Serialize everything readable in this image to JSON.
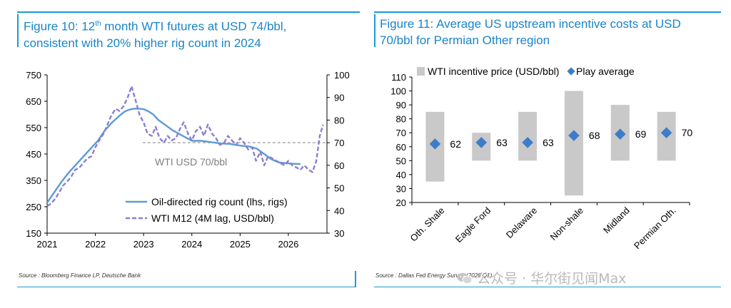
{
  "left": {
    "title_prefix": "Figure 10: 12",
    "title_sup": "th",
    "title_rest": " month WTI futures at USD 74/bbl,",
    "title_line2": "consistent with 20% higher rig count in 2024",
    "source": "Source : Bloomberg Finance LP, Deutsche Bank",
    "reference_label": "WTI USD 70/bbl",
    "legend_rig": "Oil-directed rig count (lhs, rigs)",
    "legend_wti": "WTI M12 (4M lag, USD/bbl)",
    "colors": {
      "rig": "#5b9bd5",
      "wti": "#8a7fd1",
      "ref": "#999999",
      "accent": "#1a9bd7"
    }
  },
  "right": {
    "title_line1": "Figure 11: Average US upstream incentive costs at USD",
    "title_line2": "70/bbl for Permian Other region",
    "source": "Source : Dallas Fed Energy Survey (2026 Q1)",
    "legend_range": "WTI incentive price (USD/bbl)",
    "legend_avg": "Play average",
    "colors": {
      "bar": "#c9c9c9",
      "marker": "#3d7cc9"
    }
  },
  "watermark": {
    "text": "公众号 · 华尔街见闻Max",
    "icon": "wechat-icon"
  },
  "chart_data": [
    {
      "type": "line",
      "title": "Figure 10: 12th month WTI futures at USD 74/bbl, consistent with 20% higher rig count in 2024",
      "x_ticks": [
        "2021",
        "2022",
        "2023",
        "2024",
        "2025",
        "2026"
      ],
      "x_range": [
        2021.0,
        2026.8
      ],
      "y_left_ticks": [
        "150",
        "250",
        "350",
        "450",
        "550",
        "650",
        "750"
      ],
      "y_left_range": [
        150,
        750
      ],
      "y_right_ticks": [
        "30",
        "40",
        "50",
        "60",
        "70",
        "80",
        "90",
        "100"
      ],
      "y_right_range": [
        30,
        100
      ],
      "reference_line": {
        "axis": "right",
        "value": 70,
        "from_x": 2022.98
      },
      "series": [
        {
          "name": "Oil-directed rig count (lhs, rigs)",
          "axis": "left",
          "style": "solid",
          "x": [
            2021.0,
            2021.15,
            2021.3,
            2021.45,
            2021.6,
            2021.75,
            2021.9,
            2022.05,
            2022.2,
            2022.35,
            2022.5,
            2022.6,
            2022.7,
            2022.8,
            2022.9,
            2023.0,
            2023.1,
            2023.2,
            2023.3,
            2023.45,
            2023.6,
            2023.75,
            2023.9,
            2024.0,
            2024.2,
            2024.4,
            2024.6,
            2024.8,
            2025.0,
            2025.2,
            2025.35,
            2025.5,
            2025.65,
            2025.8,
            2025.95,
            2026.1,
            2026.25
          ],
          "values": [
            265,
            305,
            345,
            380,
            410,
            440,
            470,
            500,
            540,
            570,
            595,
            610,
            618,
            622,
            622,
            620,
            612,
            600,
            580,
            560,
            540,
            525,
            510,
            500,
            500,
            495,
            490,
            488,
            482,
            478,
            470,
            450,
            430,
            418,
            415,
            413,
            412
          ]
        },
        {
          "name": "WTI M12 (4M lag, USD/bbl)",
          "axis": "right",
          "style": "dashed",
          "x": [
            2021.0,
            2021.08,
            2021.16,
            2021.25,
            2021.33,
            2021.42,
            2021.5,
            2021.58,
            2021.67,
            2021.75,
            2021.83,
            2021.92,
            2022.0,
            2022.08,
            2022.17,
            2022.25,
            2022.33,
            2022.42,
            2022.5,
            2022.58,
            2022.67,
            2022.75,
            2022.83,
            2022.92,
            2023.0,
            2023.08,
            2023.17,
            2023.25,
            2023.33,
            2023.42,
            2023.5,
            2023.58,
            2023.67,
            2023.75,
            2023.83,
            2023.92,
            2024.0,
            2024.08,
            2024.17,
            2024.25,
            2024.33,
            2024.42,
            2024.5,
            2024.58,
            2024.67,
            2024.75,
            2024.83,
            2024.92,
            2025.0,
            2025.08,
            2025.17,
            2025.25,
            2025.33,
            2025.42,
            2025.5,
            2025.58,
            2025.67,
            2025.75,
            2025.83,
            2025.92,
            2026.0,
            2026.08,
            2026.17,
            2026.25,
            2026.33,
            2026.42,
            2026.5,
            2026.58,
            2026.65,
            2026.72
          ],
          "values": [
            42,
            43,
            45,
            48,
            51,
            53,
            55,
            58,
            59,
            61,
            63,
            64,
            68,
            71,
            74,
            78,
            82,
            85,
            84,
            86,
            90,
            95,
            89,
            82,
            79,
            74,
            73,
            77,
            72,
            70,
            73,
            71,
            72,
            76,
            79,
            74,
            71,
            75,
            77,
            73,
            78,
            74,
            72,
            69,
            70,
            73,
            71,
            69,
            72,
            70,
            67,
            68,
            62,
            66,
            60,
            64,
            63,
            62,
            61,
            60,
            62,
            60,
            59,
            58,
            60,
            58,
            57,
            62,
            73,
            78
          ]
        }
      ]
    },
    {
      "type": "bar",
      "subtype": "floating-range-with-markers",
      "title": "Figure 11: Average US upstream incentive costs at USD 70/bbl for Permian Other region",
      "categories": [
        "Oth. Shale",
        "Eagle Ford",
        "Delaware",
        "Non-shale",
        "Midland",
        "Permian Oth."
      ],
      "y_ticks": [
        "20",
        "30",
        "40",
        "50",
        "60",
        "70",
        "80",
        "90",
        "100",
        "110"
      ],
      "ylim": [
        20,
        110
      ],
      "series": [
        {
          "name": "WTI incentive price (USD/bbl)",
          "low": [
            35,
            50,
            50,
            25,
            50,
            50
          ],
          "high": [
            85,
            70,
            85,
            100,
            90,
            85
          ]
        },
        {
          "name": "Play average",
          "values": [
            62,
            63,
            63,
            68,
            69,
            70
          ],
          "labels": [
            "62",
            "63",
            "63",
            "68",
            "69",
            "70"
          ]
        }
      ]
    }
  ]
}
